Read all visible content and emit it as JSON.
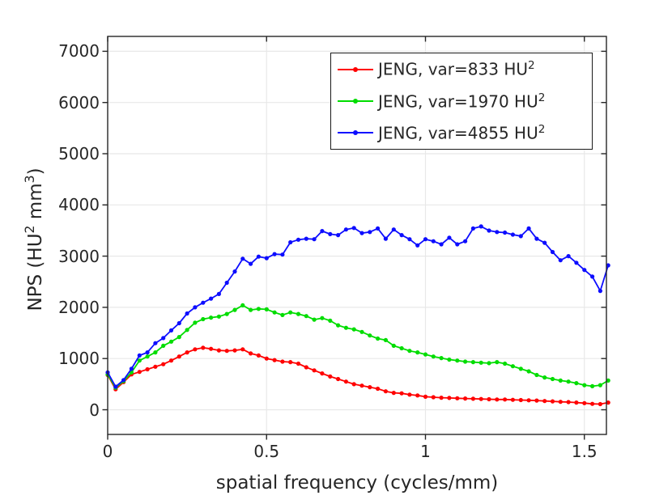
{
  "figure": {
    "background": "#ffffff",
    "text_color": "#262626",
    "axis_color": "#262626",
    "grid_color": "#e8e8e8"
  },
  "axes": {
    "x_label": "spatial frequency (cycles/mm)",
    "y_label_parts": [
      "NPS (HU",
      "2",
      " mm",
      "3",
      ")"
    ],
    "x_ticks": [
      {
        "value": 0,
        "label": "0"
      },
      {
        "value": 0.5,
        "label": "0.5"
      },
      {
        "value": 1,
        "label": "1"
      },
      {
        "value": 1.5,
        "label": "1.5"
      }
    ],
    "y_ticks": [
      {
        "value": 0,
        "label": "0"
      },
      {
        "value": 1000,
        "label": "1000"
      },
      {
        "value": 2000,
        "label": "2000"
      },
      {
        "value": 3000,
        "label": "3000"
      },
      {
        "value": 4000,
        "label": "4000"
      },
      {
        "value": 5000,
        "label": "5000"
      },
      {
        "value": 6000,
        "label": "6000"
      },
      {
        "value": 7000,
        "label": "7000"
      }
    ]
  },
  "legend": {
    "items": [
      {
        "label": "JENG, var=833 HU",
        "sup": "2",
        "color": "#ff0000"
      },
      {
        "label": "JENG, var=1970 HU",
        "sup": "2",
        "color": "#00dd00"
      },
      {
        "label": "JENG, var=4855 HU",
        "sup": "2",
        "color": "#0d0dff"
      }
    ]
  },
  "chart_data": {
    "type": "line",
    "title": "",
    "xlabel": "spatial frequency (cycles/mm)",
    "ylabel": "NPS (HU^2 mm^3)",
    "xlim": [
      0,
      1.57
    ],
    "ylim": [
      -490,
      7290
    ],
    "grid": true,
    "legend_position": "top-right",
    "marker": "dot",
    "x": [
      0.0,
      0.025,
      0.05,
      0.075,
      0.1,
      0.125,
      0.15,
      0.175,
      0.2,
      0.225,
      0.25,
      0.275,
      0.3,
      0.325,
      0.35,
      0.375,
      0.4,
      0.425,
      0.45,
      0.475,
      0.5,
      0.525,
      0.55,
      0.575,
      0.6,
      0.625,
      0.65,
      0.675,
      0.7,
      0.725,
      0.75,
      0.775,
      0.8,
      0.825,
      0.85,
      0.875,
      0.9,
      0.925,
      0.95,
      0.975,
      1.0,
      1.025,
      1.05,
      1.075,
      1.1,
      1.125,
      1.15,
      1.175,
      1.2,
      1.225,
      1.25,
      1.275,
      1.3,
      1.325,
      1.35,
      1.375,
      1.4,
      1.425,
      1.45,
      1.475,
      1.5,
      1.525,
      1.55,
      1.575
    ],
    "series": [
      {
        "name": "JENG, var=833 HU^2",
        "color": "#ff0000",
        "values": [
          680,
          400,
          540,
          690,
          740,
          790,
          840,
          890,
          960,
          1040,
          1120,
          1180,
          1210,
          1190,
          1160,
          1150,
          1160,
          1180,
          1100,
          1060,
          1000,
          970,
          940,
          930,
          900,
          830,
          770,
          710,
          650,
          600,
          550,
          500,
          470,
          440,
          410,
          360,
          330,
          320,
          295,
          280,
          255,
          245,
          235,
          230,
          225,
          220,
          215,
          210,
          205,
          200,
          200,
          195,
          190,
          185,
          180,
          170,
          165,
          155,
          150,
          140,
          130,
          115,
          110,
          140
        ]
      },
      {
        "name": "JENG, var=1970 HU^2",
        "color": "#00dd00",
        "values": [
          690,
          430,
          560,
          730,
          960,
          1040,
          1120,
          1250,
          1330,
          1420,
          1560,
          1700,
          1770,
          1800,
          1820,
          1870,
          1950,
          2040,
          1950,
          1970,
          1960,
          1900,
          1850,
          1900,
          1870,
          1830,
          1760,
          1790,
          1740,
          1650,
          1600,
          1570,
          1520,
          1450,
          1390,
          1360,
          1250,
          1200,
          1150,
          1120,
          1080,
          1040,
          1010,
          980,
          960,
          940,
          930,
          920,
          910,
          930,
          900,
          850,
          800,
          750,
          680,
          630,
          600,
          570,
          550,
          520,
          480,
          460,
          480,
          570
        ]
      },
      {
        "name": "JENG, var=4855 HU^2",
        "color": "#0d0dff",
        "values": [
          730,
          450,
          580,
          800,
          1060,
          1120,
          1300,
          1400,
          1550,
          1690,
          1880,
          2000,
          2090,
          2170,
          2260,
          2480,
          2700,
          2950,
          2850,
          2990,
          2960,
          3040,
          3030,
          3270,
          3320,
          3340,
          3330,
          3490,
          3430,
          3410,
          3520,
          3550,
          3450,
          3470,
          3540,
          3340,
          3520,
          3410,
          3330,
          3210,
          3330,
          3290,
          3230,
          3360,
          3230,
          3290,
          3540,
          3580,
          3500,
          3470,
          3460,
          3420,
          3390,
          3540,
          3340,
          3260,
          3080,
          2920,
          3000,
          2870,
          2730,
          2600,
          2320,
          2820
        ]
      }
    ]
  }
}
